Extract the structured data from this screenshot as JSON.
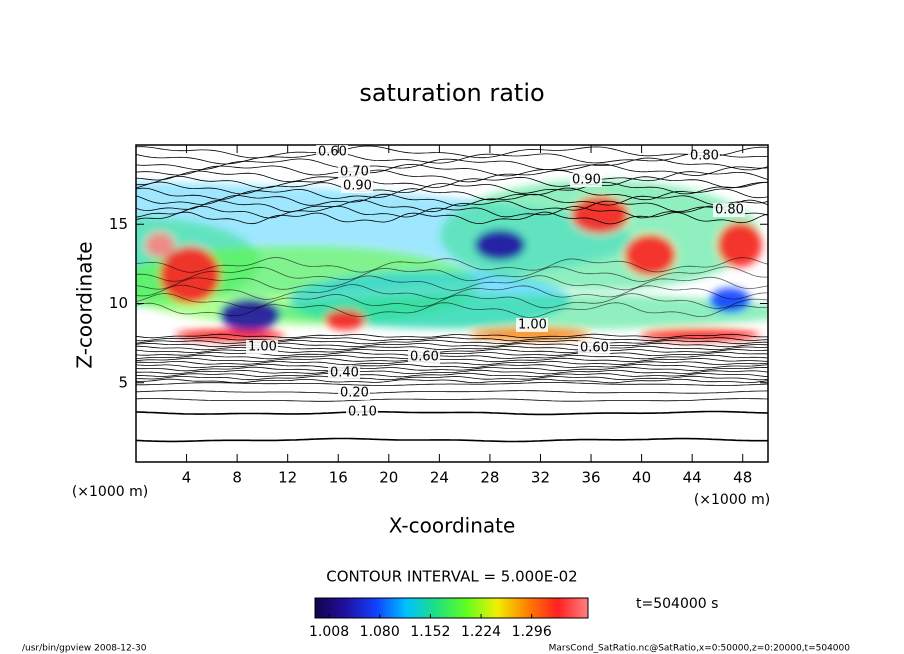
{
  "chart_data": {
    "type": "contour",
    "title": "saturation ratio",
    "xlabel": "X-coordinate",
    "ylabel": "Z-coordinate",
    "x_unit": "(×1000 m)",
    "y_unit": "(×1000 m)",
    "xlim": [
      0,
      50
    ],
    "ylim": [
      0,
      20
    ],
    "xticks": [
      4,
      8,
      12,
      16,
      20,
      24,
      28,
      32,
      36,
      40,
      44,
      48
    ],
    "yticks": [
      5,
      10,
      15
    ],
    "contour_interval": "CONTOUR INTERVAL = 5.000E-02",
    "contour_labels": [
      "0.60",
      "0.70",
      "0.90",
      "0.80",
      "0.90",
      "0.80",
      "1.00",
      "1.00",
      "0.60",
      "0.60",
      "0.40",
      "0.20",
      "0.10"
    ],
    "colorbar": {
      "lim": [
        0.988,
        1.376
      ],
      "colors": [
        "#14004a",
        "#2010a0",
        "#1040ff",
        "#00c0ff",
        "#20e080",
        "#60ff20",
        "#f0f000",
        "#ff8000",
        "#ff2020",
        "#ff8080"
      ],
      "ticks": [
        {
          "value": 1.008,
          "label": "1.008"
        },
        {
          "value": 1.08,
          "label": "1.080"
        },
        {
          "value": 1.152,
          "label": "1.152"
        },
        {
          "value": 1.224,
          "label": "1.224"
        },
        {
          "value": 1.296,
          "label": "1.296"
        }
      ]
    },
    "time_label": "t=504000 s",
    "footer_left": "/usr/bin/gpview  2008-12-30",
    "footer_right": "MarsCond_SatRatio.nc@SatRatio,x=0:50000,z=0:20000,t=504000"
  }
}
